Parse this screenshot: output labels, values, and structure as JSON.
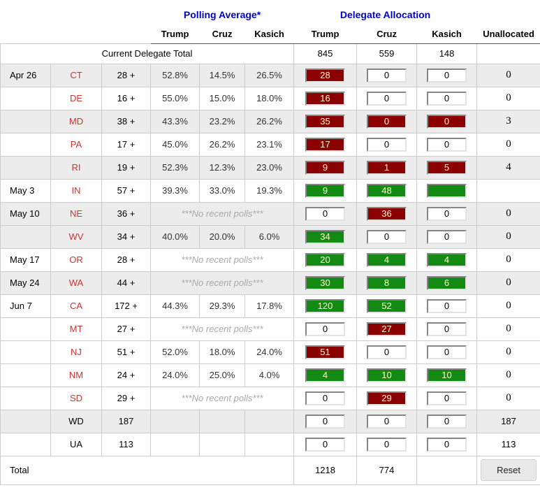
{
  "header": {
    "polling_group": "Polling Average*",
    "delegate_group": "Delegate Allocation",
    "poll_cols": [
      "Trump",
      "Cruz",
      "Kasich"
    ],
    "alloc_cols": [
      "Trump",
      "Cruz",
      "Kasich"
    ],
    "unallocated_col": "Unallocated"
  },
  "current_total": {
    "label": "Current Delegate Total",
    "trump": "845",
    "cruz": "559",
    "kasich": "148"
  },
  "no_polls_text": "***No recent polls***",
  "rows": [
    {
      "date": "Apr 26",
      "state": "CT",
      "state_link": true,
      "delegates": "28 +",
      "no_polls": false,
      "polls": [
        "52.8%",
        "14.5%",
        "26.5%"
      ],
      "alloc": [
        {
          "value": "28",
          "color": "maroon"
        },
        {
          "value": "0",
          "color": "white"
        },
        {
          "value": "0",
          "color": "white"
        }
      ],
      "unallocated": "0",
      "shaded": true
    },
    {
      "date": "",
      "state": "DE",
      "state_link": true,
      "delegates": "16 +",
      "no_polls": false,
      "polls": [
        "55.0%",
        "15.0%",
        "18.0%"
      ],
      "alloc": [
        {
          "value": "16",
          "color": "maroon"
        },
        {
          "value": "0",
          "color": "white"
        },
        {
          "value": "0",
          "color": "white"
        }
      ],
      "unallocated": "0",
      "shaded": false
    },
    {
      "date": "",
      "state": "MD",
      "state_link": true,
      "delegates": "38 +",
      "no_polls": false,
      "polls": [
        "43.3%",
        "23.2%",
        "26.2%"
      ],
      "alloc": [
        {
          "value": "35",
          "color": "maroon"
        },
        {
          "value": "0",
          "color": "maroon"
        },
        {
          "value": "0",
          "color": "maroon"
        }
      ],
      "unallocated": "3",
      "shaded": true
    },
    {
      "date": "",
      "state": "PA",
      "state_link": true,
      "delegates": "17 +",
      "no_polls": false,
      "polls": [
        "45.0%",
        "26.2%",
        "23.1%"
      ],
      "alloc": [
        {
          "value": "17",
          "color": "maroon"
        },
        {
          "value": "0",
          "color": "white"
        },
        {
          "value": "0",
          "color": "white"
        }
      ],
      "unallocated": "0",
      "shaded": false
    },
    {
      "date": "",
      "state": "RI",
      "state_link": true,
      "delegates": "19 +",
      "no_polls": false,
      "polls": [
        "52.3%",
        "12.3%",
        "23.0%"
      ],
      "alloc": [
        {
          "value": "9",
          "color": "maroon"
        },
        {
          "value": "1",
          "color": "maroon"
        },
        {
          "value": "5",
          "color": "maroon"
        }
      ],
      "unallocated": "4",
      "shaded": true
    },
    {
      "date": "May 3",
      "state": "IN",
      "state_link": true,
      "delegates": "57 +",
      "no_polls": false,
      "polls": [
        "39.3%",
        "33.0%",
        "19.3%"
      ],
      "alloc": [
        {
          "value": "9",
          "color": "green"
        },
        {
          "value": "48",
          "color": "green"
        },
        {
          "value": "",
          "color": "green"
        }
      ],
      "unallocated": "",
      "shaded": false
    },
    {
      "date": "May 10",
      "state": "NE",
      "state_link": true,
      "delegates": "36 +",
      "no_polls": true,
      "polls": [],
      "alloc": [
        {
          "value": "0",
          "color": "white"
        },
        {
          "value": "36",
          "color": "maroon"
        },
        {
          "value": "0",
          "color": "white"
        }
      ],
      "unallocated": "0",
      "shaded": true
    },
    {
      "date": "",
      "state": "WV",
      "state_link": true,
      "delegates": "34 +",
      "no_polls": false,
      "polls": [
        "40.0%",
        "20.0%",
        "6.0%"
      ],
      "alloc": [
        {
          "value": "34",
          "color": "green"
        },
        {
          "value": "0",
          "color": "white"
        },
        {
          "value": "0",
          "color": "white"
        }
      ],
      "unallocated": "0",
      "shaded": true
    },
    {
      "date": "May 17",
      "state": "OR",
      "state_link": true,
      "delegates": "28 +",
      "no_polls": true,
      "polls": [],
      "alloc": [
        {
          "value": "20",
          "color": "green"
        },
        {
          "value": "4",
          "color": "green"
        },
        {
          "value": "4",
          "color": "green"
        }
      ],
      "unallocated": "0",
      "shaded": false
    },
    {
      "date": "May 24",
      "state": "WA",
      "state_link": true,
      "delegates": "44 +",
      "no_polls": true,
      "polls": [],
      "alloc": [
        {
          "value": "30",
          "color": "green"
        },
        {
          "value": "8",
          "color": "green"
        },
        {
          "value": "6",
          "color": "green"
        }
      ],
      "unallocated": "0",
      "shaded": true
    },
    {
      "date": "Jun 7",
      "state": "CA",
      "state_link": true,
      "delegates": "172 +",
      "no_polls": false,
      "polls": [
        "44.3%",
        "29.3%",
        "17.8%"
      ],
      "alloc": [
        {
          "value": "120",
          "color": "green"
        },
        {
          "value": "52",
          "color": "green"
        },
        {
          "value": "0",
          "color": "white"
        }
      ],
      "unallocated": "0",
      "shaded": false
    },
    {
      "date": "",
      "state": "MT",
      "state_link": true,
      "delegates": "27 +",
      "no_polls": true,
      "polls": [],
      "alloc": [
        {
          "value": "0",
          "color": "white"
        },
        {
          "value": "27",
          "color": "maroon"
        },
        {
          "value": "0",
          "color": "white"
        }
      ],
      "unallocated": "0",
      "shaded": false
    },
    {
      "date": "",
      "state": "NJ",
      "state_link": true,
      "delegates": "51 +",
      "no_polls": false,
      "polls": [
        "52.0%",
        "18.0%",
        "24.0%"
      ],
      "alloc": [
        {
          "value": "51",
          "color": "maroon"
        },
        {
          "value": "0",
          "color": "white"
        },
        {
          "value": "0",
          "color": "white"
        }
      ],
      "unallocated": "0",
      "shaded": false
    },
    {
      "date": "",
      "state": "NM",
      "state_link": true,
      "delegates": "24 +",
      "no_polls": false,
      "polls": [
        "24.0%",
        "25.0%",
        "4.0%"
      ],
      "alloc": [
        {
          "value": "4",
          "color": "green"
        },
        {
          "value": "10",
          "color": "green"
        },
        {
          "value": "10",
          "color": "green"
        }
      ],
      "unallocated": "0",
      "shaded": false
    },
    {
      "date": "",
      "state": "SD",
      "state_link": true,
      "delegates": "29 +",
      "no_polls": true,
      "polls": [],
      "alloc": [
        {
          "value": "0",
          "color": "white"
        },
        {
          "value": "29",
          "color": "maroon"
        },
        {
          "value": "0",
          "color": "white"
        }
      ],
      "unallocated": "0",
      "shaded": false
    },
    {
      "date": "",
      "state": "WD",
      "state_link": false,
      "delegates": "187",
      "no_polls": false,
      "polls": [
        "",
        "",
        ""
      ],
      "alloc": [
        {
          "value": "0",
          "color": "white"
        },
        {
          "value": "0",
          "color": "white"
        },
        {
          "value": "0",
          "color": "white"
        }
      ],
      "unallocated": "187",
      "shaded": true
    },
    {
      "date": "",
      "state": "UA",
      "state_link": false,
      "delegates": "113",
      "no_polls": false,
      "polls": [
        "",
        "",
        ""
      ],
      "alloc": [
        {
          "value": "0",
          "color": "white"
        },
        {
          "value": "0",
          "color": "white"
        },
        {
          "value": "0",
          "color": "white"
        }
      ],
      "unallocated": "113",
      "shaded": false
    }
  ],
  "total": {
    "label": "Total",
    "trump": "1218",
    "cruz": "774",
    "reset_label": "Reset"
  },
  "colors": {
    "maroon_box": "#8b0000",
    "green_box": "#138a13",
    "row_shade": "#ececec",
    "group_header_blue": "#0000cc",
    "state_link_red": "#cc3333",
    "box_text_cream": "#ffffcc",
    "grid_line": "#cccccc"
  }
}
